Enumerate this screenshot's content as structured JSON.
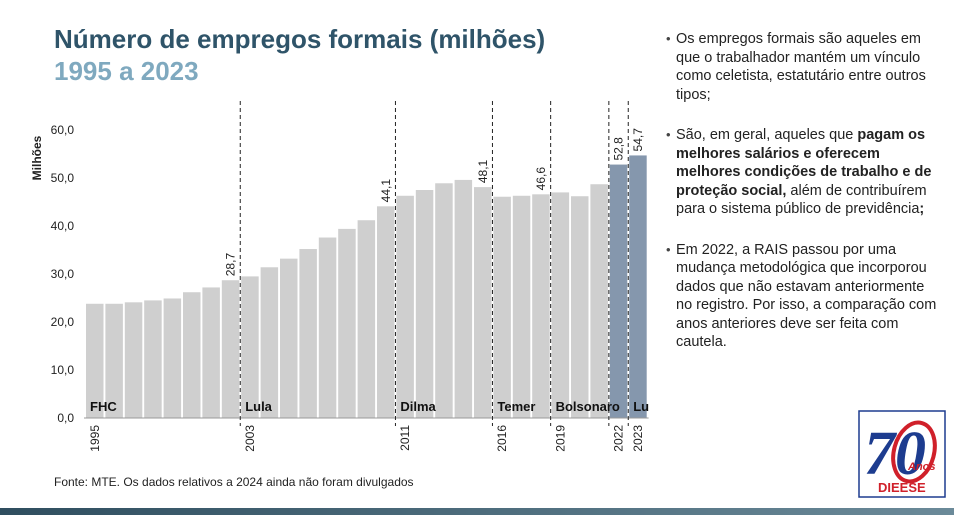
{
  "header": {
    "title": "Número de empregos formais (milhões)",
    "subtitle": "1995 a 2023"
  },
  "chart_data": {
    "type": "bar",
    "ylabel": "Milhões",
    "ylim": [
      0,
      60
    ],
    "yticks": [
      "0,0",
      "10,0",
      "20,0",
      "30,0",
      "40,0",
      "50,0",
      "60,0"
    ],
    "x": [
      1995,
      1996,
      1997,
      1998,
      1999,
      2000,
      2001,
      2002,
      2003,
      2004,
      2005,
      2006,
      2007,
      2008,
      2009,
      2010,
      2011,
      2012,
      2013,
      2014,
      2015,
      2016,
      2017,
      2018,
      2019,
      2020,
      2021,
      2022,
      2023
    ],
    "values": [
      23.8,
      23.8,
      24.1,
      24.5,
      24.9,
      26.2,
      27.2,
      28.7,
      29.5,
      31.4,
      33.2,
      35.2,
      37.6,
      39.4,
      41.2,
      44.1,
      46.3,
      47.5,
      48.9,
      49.6,
      48.1,
      46.1,
      46.3,
      46.6,
      47.0,
      46.2,
      48.7,
      52.8,
      54.7
    ],
    "highlight_indices": [
      27,
      28
    ],
    "x_tick_labels": [
      {
        "index": 0,
        "label": "1995"
      },
      {
        "index": 8,
        "label": "2003"
      },
      {
        "index": 16,
        "label": "2011"
      },
      {
        "index": 21,
        "label": "2016"
      },
      {
        "index": 24,
        "label": "2019"
      },
      {
        "index": 27,
        "label": "2022"
      },
      {
        "index": 28,
        "label": "2023"
      }
    ],
    "data_labels": [
      {
        "index": 7,
        "label": "28,7"
      },
      {
        "index": 15,
        "label": "44,1"
      },
      {
        "index": 20,
        "label": "48,1"
      },
      {
        "index": 23,
        "label": "46,6"
      },
      {
        "index": 27,
        "label": "52,8"
      },
      {
        "index": 28,
        "label": "54,7"
      }
    ],
    "period_dividers_after_index": [
      7,
      15,
      20,
      23,
      26,
      27
    ],
    "periods": [
      {
        "start_index": 0,
        "label": "FHC"
      },
      {
        "start_index": 8,
        "label": "Lula"
      },
      {
        "start_index": 16,
        "label": "Dilma"
      },
      {
        "start_index": 21,
        "label": "Temer"
      },
      {
        "start_index": 24,
        "label": "Bolsonaro"
      },
      {
        "start_index": 28,
        "label": "Lula"
      }
    ],
    "colors": {
      "bar": "#cfcfcf",
      "highlight": "#8597ad"
    }
  },
  "notes": [
    {
      "parts": [
        {
          "text": "Os empregos formais são aqueles em que o trabalhador mantém um vínculo como celetista, estatutário entre outros tipos;",
          "bold": false
        }
      ]
    },
    {
      "parts": [
        {
          "text": "São, em geral, aqueles que ",
          "bold": false
        },
        {
          "text": "pagam os melhores salários e oferecem melhores condições de trabalho e de proteção social,",
          "bold": true
        },
        {
          "text": " além de contribuírem para o sistema público de previdência",
          "bold": false
        },
        {
          "text": ";",
          "bold": true
        }
      ]
    },
    {
      "parts": [
        {
          "text": "Em 2022, a RAIS passou por uma mudança metodológica que incorporou dados que não estavam anteriormente no registro. Por isso, a comparação com anos anteriores deve ser feita com cautela.",
          "bold": false
        }
      ]
    }
  ],
  "source": "Fonte: MTE. Os dados relativos a 2024 ainda não foram divulgados",
  "logo": {
    "number": "70",
    "word": "Anos",
    "org": "DIEESE"
  }
}
